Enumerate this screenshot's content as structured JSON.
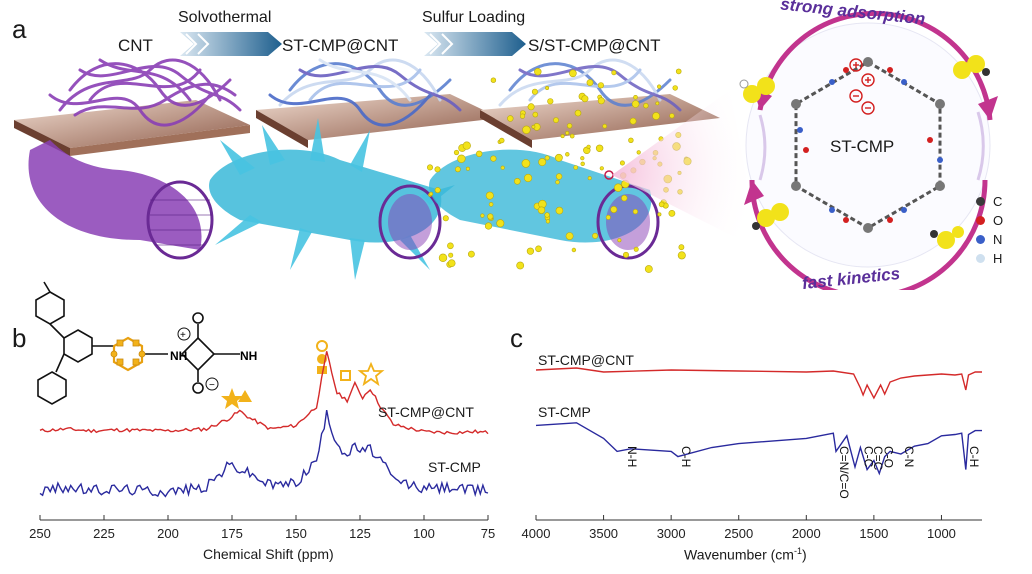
{
  "panel_a": {
    "letter": "a",
    "stages": [
      "CNT",
      "ST-CMP@CNT",
      "S/ST-CMP@CNT"
    ],
    "arrows": [
      "Solvothermal",
      "Sulfur Loading"
    ],
    "ring": {
      "top": "strong adsorption",
      "bottom": "fast kinetics",
      "center": "ST-CMP"
    },
    "legend": [
      {
        "label": "C",
        "color": "#3a3a3a"
      },
      {
        "label": "O",
        "color": "#d32020"
      },
      {
        "label": "N",
        "color": "#3a5fc8"
      },
      {
        "label": "H",
        "color": "#cfe0ef"
      }
    ],
    "colors": {
      "cnt": "#8a3fb5",
      "cmp": "#3ab8d8",
      "sulfur": "#f2e21a",
      "ring": "#c2348e"
    }
  },
  "panel_b": {
    "letter": "b",
    "chart_data": {
      "type": "line",
      "xlabel": "Chemical Shift (ppm)",
      "xlim": [
        250,
        75
      ],
      "x_ticks": [
        250,
        225,
        200,
        175,
        150,
        125,
        100,
        75
      ],
      "series": [
        {
          "name": "ST-CMP@CNT",
          "color": "#d42a2a",
          "x": [
            250,
            240,
            230,
            220,
            200,
            185,
            176,
            172,
            168,
            160,
            150,
            142,
            138,
            134,
            130,
            127,
            124,
            121,
            117,
            112,
            100,
            90,
            80,
            75
          ],
          "y": [
            0.08,
            0.1,
            0.08,
            0.09,
            0.08,
            0.1,
            0.22,
            0.3,
            0.22,
            0.1,
            0.14,
            0.35,
            0.95,
            0.5,
            0.42,
            0.6,
            0.45,
            0.55,
            0.35,
            0.15,
            0.07,
            0.06,
            0.07,
            0.06
          ]
        },
        {
          "name": "ST-CMP",
          "color": "#2a2a9e",
          "x": [
            250,
            240,
            230,
            220,
            200,
            185,
            176,
            172,
            168,
            160,
            150,
            142,
            138,
            134,
            130,
            127,
            124,
            121,
            117,
            112,
            100,
            90,
            80,
            75
          ],
          "y": [
            0.05,
            0.1,
            0.06,
            0.08,
            0.05,
            0.1,
            0.35,
            0.3,
            0.25,
            0.12,
            0.15,
            0.4,
            0.9,
            0.6,
            0.45,
            0.55,
            0.5,
            0.52,
            0.4,
            0.18,
            0.08,
            0.1,
            0.06,
            0.08
          ]
        }
      ]
    }
  },
  "panel_c": {
    "letter": "c",
    "chart_data": {
      "type": "line",
      "xlabel": "Wavenumber (cm",
      "xlabel_sup": "-1",
      "xlabel_end": ")",
      "xlim": [
        4000,
        700
      ],
      "x_ticks": [
        4000,
        3500,
        3000,
        2500,
        2000,
        1500,
        1000
      ],
      "series": [
        {
          "name": "ST-CMP@CNT",
          "color": "#d42a2a",
          "x": [
            4000,
            3700,
            3500,
            3000,
            2500,
            2000,
            1800,
            1650,
            1600,
            1580,
            1550,
            1500,
            1450,
            1420,
            1380,
            1300,
            1200,
            1100,
            1000,
            900,
            850,
            820,
            800,
            750,
            700
          ],
          "y": [
            0.9,
            0.92,
            0.88,
            0.9,
            0.89,
            0.88,
            0.89,
            0.86,
            0.72,
            0.65,
            0.75,
            0.62,
            0.75,
            0.66,
            0.78,
            0.82,
            0.84,
            0.85,
            0.86,
            0.85,
            0.86,
            0.7,
            0.85,
            0.88,
            0.88
          ]
        },
        {
          "name": "ST-CMP",
          "color": "#2a2a9e",
          "x": [
            4000,
            3700,
            3500,
            3400,
            3300,
            3000,
            2950,
            2700,
            2500,
            2000,
            1800,
            1780,
            1700,
            1640,
            1600,
            1550,
            1500,
            1460,
            1420,
            1380,
            1300,
            1200,
            1100,
            1000,
            900,
            850,
            820,
            800,
            750,
            700
          ],
          "y": [
            0.42,
            0.44,
            0.32,
            0.22,
            0.24,
            0.22,
            0.18,
            0.25,
            0.28,
            0.32,
            0.36,
            0.22,
            0.34,
            0.1,
            0.25,
            0.08,
            0.15,
            0.05,
            0.18,
            0.22,
            0.2,
            0.26,
            0.28,
            0.34,
            0.35,
            0.36,
            0.08,
            0.35,
            0.38,
            0.38
          ]
        }
      ],
      "annotations": [
        "N-H",
        "C-H",
        "C=N/C=O",
        "C-C",
        "C=C",
        "C-O",
        "C-N",
        "C-H"
      ]
    }
  }
}
